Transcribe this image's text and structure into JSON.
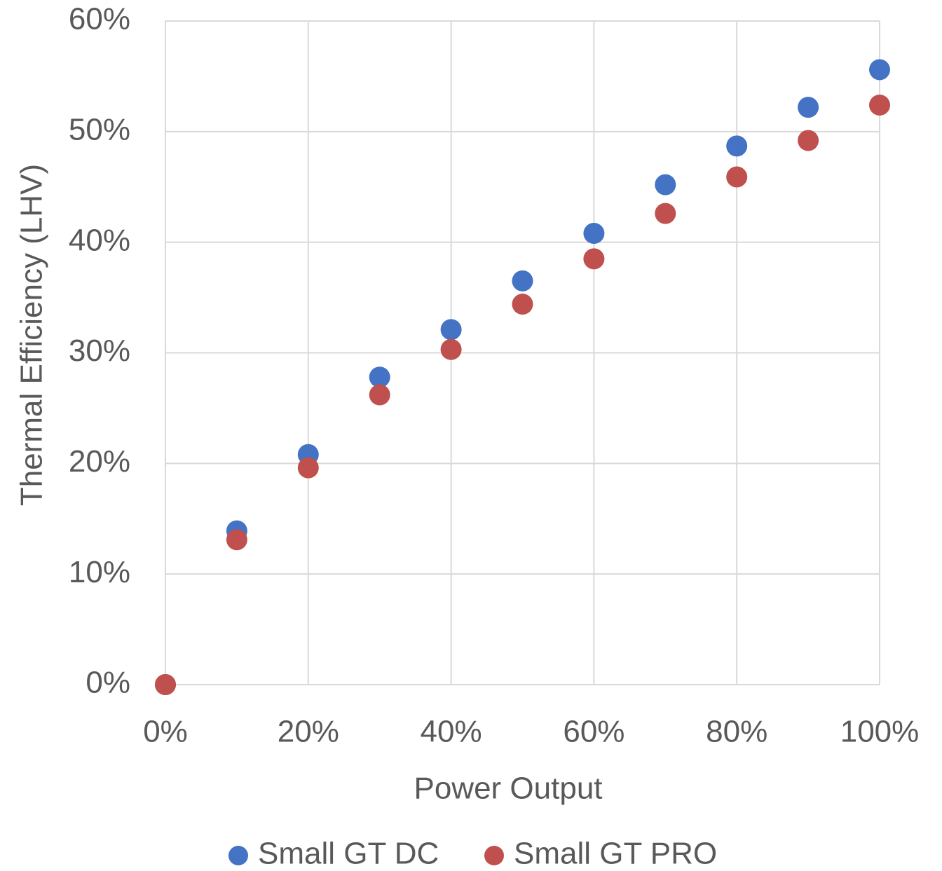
{
  "chart_data": {
    "type": "scatter",
    "x_label": "Power Output",
    "y_label": "Thermal Efficiency (LHV)",
    "x": [
      0,
      10,
      20,
      30,
      40,
      50,
      60,
      70,
      80,
      90,
      100
    ],
    "series": [
      {
        "name": "Small GT DC",
        "color": "#4472c4",
        "values": [
          0,
          13.9,
          20.8,
          27.8,
          32.1,
          36.5,
          40.8,
          45.2,
          48.7,
          52.2,
          55.6
        ]
      },
      {
        "name": "Small GT PRO",
        "color": "#c0504d",
        "values": [
          0,
          13.1,
          19.6,
          26.2,
          30.3,
          34.4,
          38.5,
          42.6,
          45.9,
          49.2,
          52.4
        ]
      }
    ],
    "xlim": [
      0,
      100
    ],
    "xticks": [
      {
        "value": 0,
        "label": "0%"
      },
      {
        "value": 20,
        "label": "20%"
      },
      {
        "value": 40,
        "label": "40%"
      },
      {
        "value": 60,
        "label": "60%"
      },
      {
        "value": 80,
        "label": "80%"
      },
      {
        "value": 100,
        "label": "100%"
      }
    ],
    "ylim": [
      0,
      60
    ],
    "yticks": [
      {
        "value": 0,
        "label": "0%"
      },
      {
        "value": 10,
        "label": "10%"
      },
      {
        "value": 20,
        "label": "20%"
      },
      {
        "value": 30,
        "label": "30%"
      },
      {
        "value": 40,
        "label": "40%"
      },
      {
        "value": 50,
        "label": "50%"
      },
      {
        "value": 60,
        "label": "60%"
      }
    ],
    "grid": true,
    "legend": "bottom"
  }
}
